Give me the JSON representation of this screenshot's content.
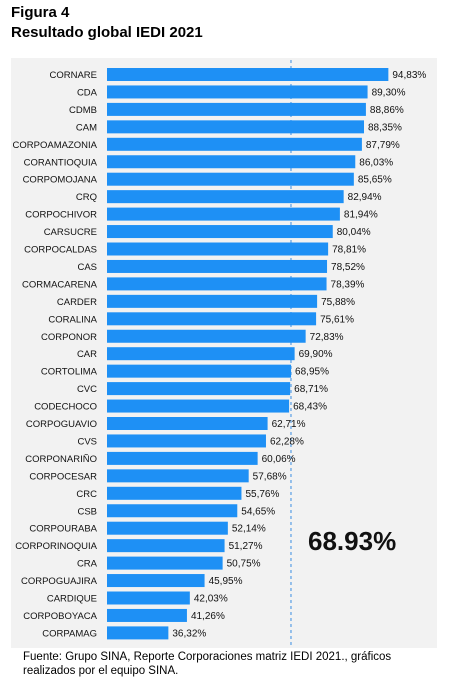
{
  "figure_label": "Figura 4",
  "title": "Resultado global IEDI 2021",
  "footer": "Fuente: Grupo SINA, Reporte Corporaciones matriz IEDI 2021., gráficos realizados por el equipo SINA.",
  "colors": {
    "bar": "#1e90f5",
    "reference_line": "#7fb3e8",
    "panel": "#f2f2f2"
  },
  "chart_data": {
    "type": "bar",
    "orientation": "horizontal",
    "categories": [
      "CORNARE",
      "CDA",
      "CDMB",
      "CAM",
      "CORPOAMAZONIA",
      "CORANTIOQUIA",
      "CORPOMOJANA",
      "CRQ",
      "CORPOCHIVOR",
      "CARSUCRE",
      "CORPOCALDAS",
      "CAS",
      "CORMACARENA",
      "CARDER",
      "CORALINA",
      "CORPONOR",
      "CAR",
      "CORTOLIMA",
      "CVC",
      "CODECHOCO",
      "CORPOGUAVIO",
      "CVS",
      "CORPONARIÑO",
      "CORPOCESAR",
      "CRC",
      "CSB",
      "CORPOURABA",
      "CORPORINOQUIA",
      "CRA",
      "CORPOGUAJIRA",
      "CARDIQUE",
      "CORPOBOYACA",
      "CORPAMAG"
    ],
    "values": [
      94.83,
      89.3,
      88.86,
      88.35,
      87.79,
      86.03,
      85.65,
      82.94,
      81.94,
      80.04,
      78.81,
      78.52,
      78.39,
      75.88,
      75.61,
      72.83,
      69.9,
      68.95,
      68.71,
      68.43,
      62.71,
      62.28,
      60.06,
      57.68,
      55.76,
      54.65,
      52.14,
      51.27,
      50.75,
      45.95,
      42.03,
      41.26,
      36.32
    ],
    "value_labels": [
      "94,83%",
      "89,30%",
      "88,86%",
      "88,35%",
      "87,79%",
      "86,03%",
      "85,65%",
      "82,94%",
      "81,94%",
      "80,04%",
      "78,81%",
      "78,52%",
      "78,39%",
      "75,88%",
      "75,61%",
      "72,83%",
      "69,90%",
      "68,95%",
      "68,71%",
      "68,43%",
      "62,71%",
      "62,28%",
      "60,06%",
      "57,68%",
      "55,76%",
      "54,65%",
      "52,14%",
      "51,27%",
      "50,75%",
      "45,95%",
      "42,03%",
      "41,26%",
      "36,32%"
    ],
    "reference_value": 68.93,
    "reference_label": "68.93%",
    "xlim": [
      20,
      95
    ]
  }
}
